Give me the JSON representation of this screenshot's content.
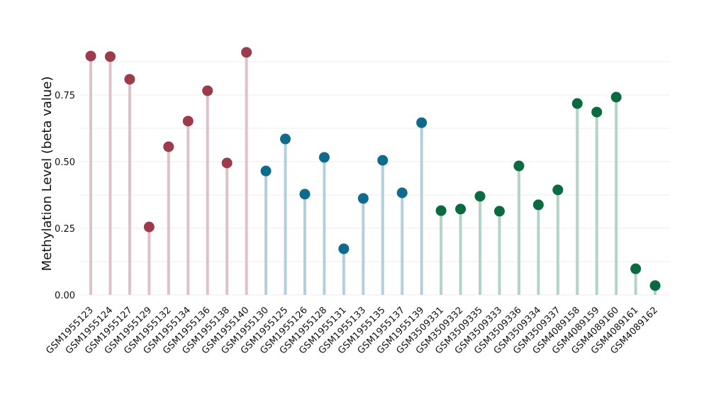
{
  "chart_data": {
    "type": "lollipop",
    "title": "",
    "xlabel": "",
    "ylabel": "Methylation Level (beta value)",
    "ylim": [
      0,
      0.93
    ],
    "yticks": [
      0,
      0.25,
      0.5,
      0.75
    ],
    "ytick_labels": [
      "0.00",
      "0.25",
      "0.50",
      "0.75"
    ],
    "grid": true,
    "categories": [
      "GSM1955123",
      "GSM1955124",
      "GSM1955127",
      "GSM1955129",
      "GSM1955132",
      "GSM1955134",
      "GSM1955136",
      "GSM1955138",
      "GSM1955140",
      "GSM1955130",
      "GSM1955125",
      "GSM1955126",
      "GSM1955128",
      "GSM1955131",
      "GSM1955133",
      "GSM1955135",
      "GSM1955137",
      "GSM1955139",
      "GSM3509331",
      "GSM3509332",
      "GSM3509335",
      "GSM3509333",
      "GSM3509336",
      "GSM3509334",
      "GSM3509337",
      "GSM4089158",
      "GSM4089159",
      "GSM4089160",
      "GSM4089161",
      "GSM4089162"
    ],
    "values": [
      0.896,
      0.894,
      0.809,
      0.255,
      0.556,
      0.652,
      0.766,
      0.495,
      0.91,
      0.465,
      0.585,
      0.378,
      0.516,
      0.173,
      0.362,
      0.505,
      0.383,
      0.646,
      0.316,
      0.322,
      0.37,
      0.314,
      0.484,
      0.338,
      0.394,
      0.718,
      0.686,
      0.742,
      0.098,
      0.035
    ],
    "groups": [
      0,
      0,
      0,
      0,
      0,
      0,
      0,
      0,
      0,
      1,
      1,
      1,
      1,
      1,
      1,
      1,
      1,
      1,
      2,
      2,
      2,
      2,
      2,
      2,
      2,
      2,
      2,
      2,
      2,
      2
    ],
    "group_colors": [
      "#9c3b4c",
      "#0f6b8e",
      "#0b6b40"
    ],
    "stem_colors": [
      "#dfc2c8",
      "#b3cfdb",
      "#b3d4c5"
    ]
  }
}
